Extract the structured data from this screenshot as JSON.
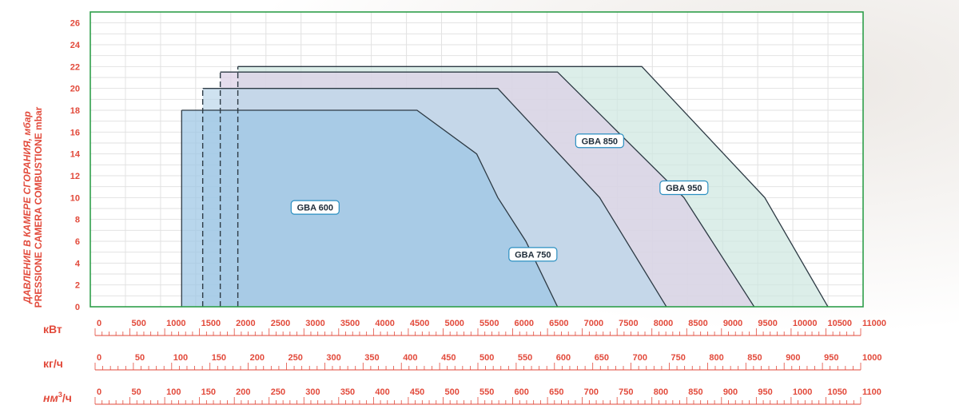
{
  "chart_data": {
    "type": "area",
    "ylabel_lines": [
      "ДАВЛЕНИЕ В КАМЕРЕ СГОРАНИЯ, мбар",
      "PRESSIONE CAMERA COMBUSTIONE  mbar"
    ],
    "ylim": [
      0,
      27
    ],
    "y_ticks": [
      0,
      2,
      4,
      6,
      8,
      10,
      12,
      14,
      16,
      18,
      20,
      22,
      24,
      26
    ],
    "xlim": [
      0,
      11000
    ],
    "grid": true,
    "x_scales": [
      {
        "unit": "кВт",
        "max": 11000,
        "labels": [
          "0",
          "500",
          "1000",
          "1500",
          "2000",
          "2500",
          "3000",
          "3500",
          "4000",
          "4500",
          "5000",
          "5500",
          "6000",
          "6500",
          "7000",
          "7500",
          "8000",
          "8500",
          "9000",
          "9500",
          "10000",
          "10500",
          "11000"
        ]
      },
      {
        "unit": "кг/ч",
        "max": 1000,
        "labels": [
          "0",
          "50",
          "100",
          "150",
          "200",
          "250",
          "300",
          "350",
          "400",
          "450",
          "500",
          "550",
          "600",
          "650",
          "700",
          "750",
          "800",
          "850",
          "900",
          "950",
          "1000"
        ]
      },
      {
        "unit_prefix": "нм",
        "unit_sup": "3",
        "unit_suffix": "/ч",
        "max": 1100,
        "labels": [
          "0",
          "50",
          "100",
          "150",
          "200",
          "250",
          "300",
          "350",
          "400",
          "450",
          "500",
          "550",
          "600",
          "650",
          "700",
          "750",
          "800",
          "850",
          "900",
          "950",
          "1000",
          "1050",
          "1100"
        ]
      }
    ],
    "series": [
      {
        "name": "GBA 950",
        "color": "#cfe8e0",
        "label_at": [
          8450,
          10.9
        ],
        "points": [
          [
            2100,
            0
          ],
          [
            2100,
            22
          ],
          [
            7850,
            22
          ],
          [
            9600,
            10
          ],
          [
            10500,
            0
          ]
        ]
      },
      {
        "name": "GBA 850",
        "color": "#ddd0e6",
        "label_at": [
          7250,
          15.2
        ],
        "points": [
          [
            1850,
            0
          ],
          [
            1850,
            21.5
          ],
          [
            6650,
            21.5
          ],
          [
            8450,
            10
          ],
          [
            9450,
            0
          ]
        ]
      },
      {
        "name": "GBA 750",
        "color": "#bcd7ea",
        "label_at": [
          6300,
          4.8
        ],
        "points": [
          [
            1600,
            0
          ],
          [
            1600,
            20
          ],
          [
            5800,
            20
          ],
          [
            7250,
            10
          ],
          [
            8200,
            0
          ]
        ]
      },
      {
        "name": "GBA 600",
        "color": "#9cc6e4",
        "label_at": [
          3200,
          9.1
        ],
        "points": [
          [
            1300,
            0
          ],
          [
            1300,
            18
          ],
          [
            4650,
            18
          ],
          [
            5500,
            14
          ],
          [
            5650,
            12
          ],
          [
            5800,
            10
          ],
          [
            6200,
            6
          ],
          [
            6650,
            0
          ]
        ]
      }
    ],
    "dashed_x": [
      1600,
      1850,
      2100
    ],
    "frame_color": "#2e9e4a",
    "label_color": "#e24a3b"
  }
}
